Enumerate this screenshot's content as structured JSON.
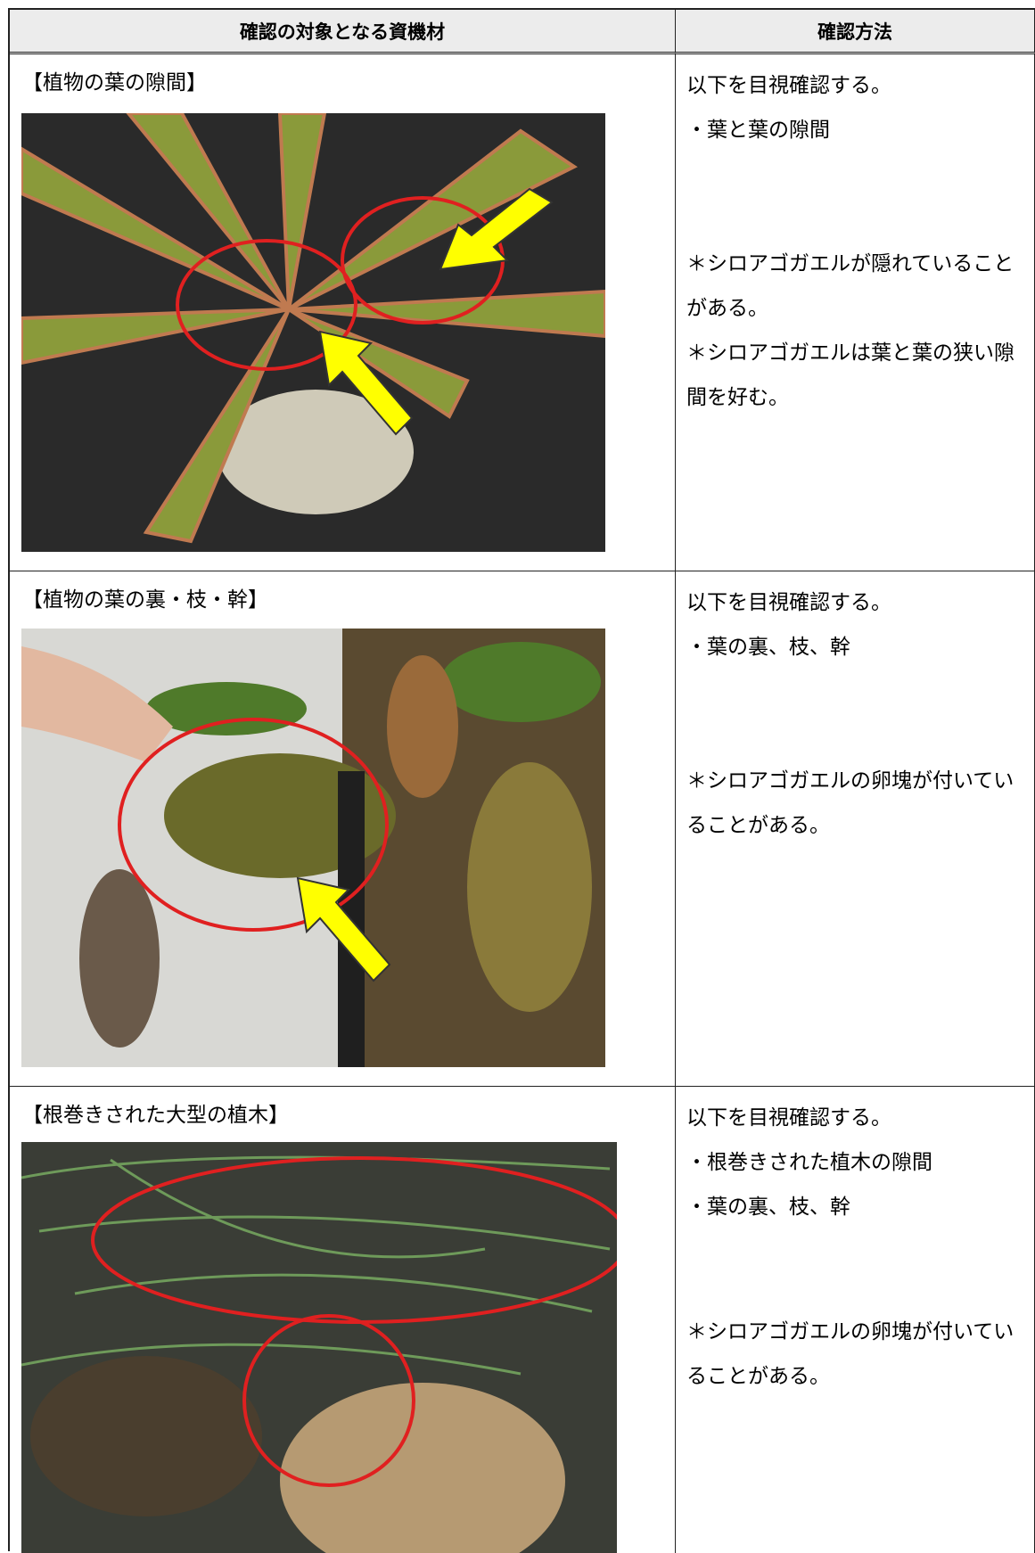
{
  "table": {
    "headers": [
      "確認の対象となる資機材",
      "確認方法"
    ],
    "rows": [
      {
        "item": "【植物の葉の隙間】",
        "method": [
          "以下を目視確認する。",
          "・葉と葉の隙間"
        ],
        "notes": [
          "＊シロアゴガエルが隠れていることがある。",
          "＊シロアゴガエルは葉と葉の狭い隙間を好む。"
        ]
      },
      {
        "item": "【植物の葉の裏・枝・幹】",
        "method": [
          "以下を目視確認する。",
          "・葉の裏、枝、幹"
        ],
        "notes": [
          "＊シロアゴガエルの卵塊が付いていることがある。"
        ]
      },
      {
        "item": "【根巻きされた大型の植木】",
        "method": [
          "以下を目視確認する。",
          "・根巻きされた植木の隙間",
          "・葉の裏、枝、幹"
        ],
        "notes": [
          "＊シロアゴガエルの卵塊が付いていることがある。"
        ]
      }
    ]
  }
}
